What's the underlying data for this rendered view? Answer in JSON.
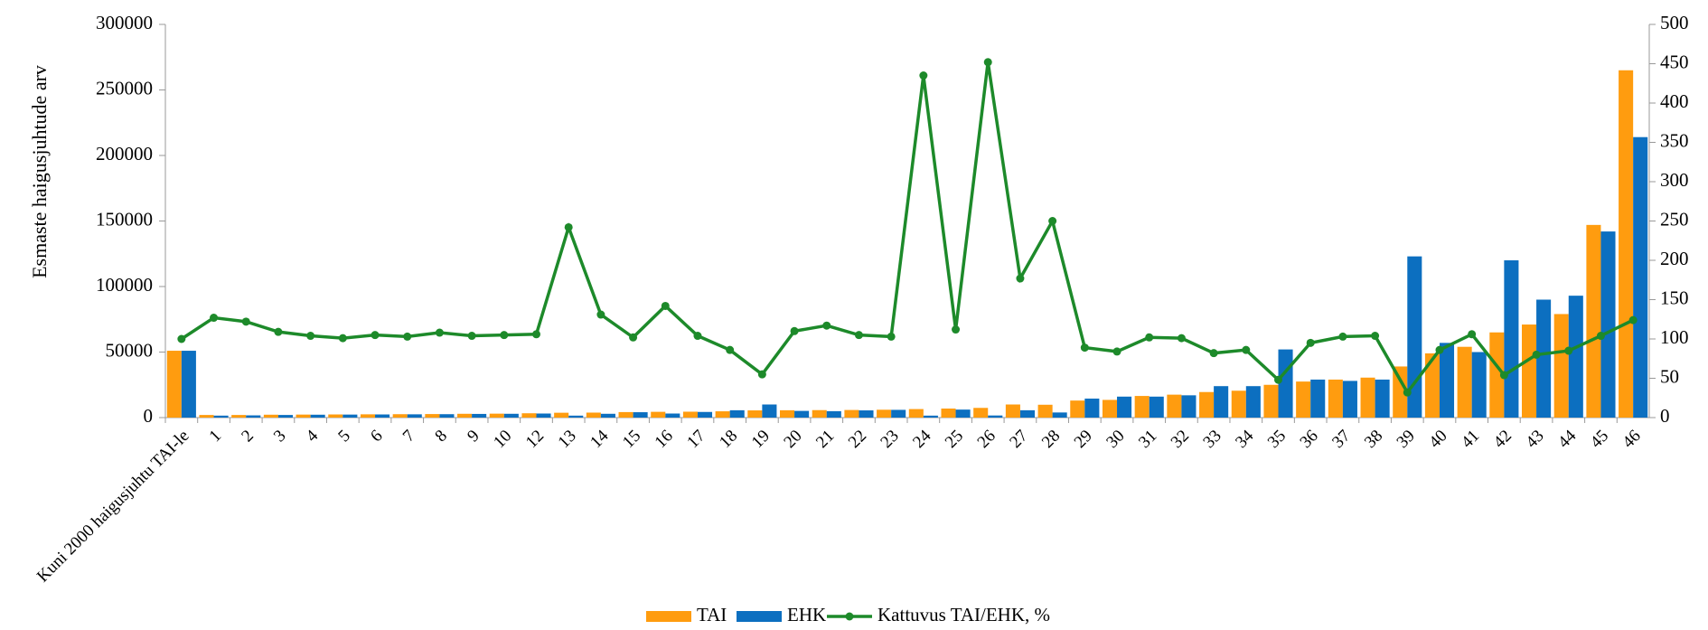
{
  "chart_data": {
    "type": "bar-line",
    "y_label": "Esmaste haigusjuhtude arv",
    "categories": [
      "Kuni 2000 haigusjuhtu TAI-le",
      "1",
      "2",
      "3",
      "4",
      "5",
      "6",
      "7",
      "8",
      "9",
      "10",
      "12",
      "13",
      "14",
      "15",
      "16",
      "17",
      "18",
      "19",
      "20",
      "21",
      "22",
      "23",
      "24",
      "25",
      "26",
      "27",
      "28",
      "29",
      "30",
      "31",
      "32",
      "33",
      "34",
      "35",
      "36",
      "37",
      "38",
      "39",
      "40",
      "41",
      "42",
      "43",
      "44",
      "45",
      "46"
    ],
    "series": [
      {
        "name": "TAI",
        "type": "bar",
        "color": "#ff9c0f",
        "values": [
          51000,
          2000,
          2000,
          2200,
          2300,
          2400,
          2500,
          2600,
          2700,
          2900,
          3000,
          3300,
          3700,
          3800,
          4200,
          4400,
          4500,
          4800,
          5500,
          5600,
          5700,
          5800,
          6000,
          6500,
          6900,
          7400,
          10000,
          9800,
          13000,
          13500,
          16500,
          17500,
          19500,
          20500,
          25000,
          27500,
          29000,
          30500,
          39000,
          49000,
          54000,
          65000,
          71000,
          79000,
          147000,
          265000
        ]
      },
      {
        "name": "EHK",
        "type": "bar",
        "color": "#0c6fc0",
        "values": [
          51000,
          1500,
          1700,
          2000,
          2200,
          2300,
          2400,
          2500,
          2600,
          2800,
          2900,
          3100,
          1500,
          2900,
          4100,
          3100,
          4300,
          5600,
          10000,
          5100,
          4900,
          5500,
          5900,
          1500,
          6100,
          1600,
          5600,
          3900,
          14500,
          16000,
          16000,
          17000,
          24000,
          24000,
          52000,
          29000,
          28000,
          29000,
          123000,
          57000,
          50000,
          120000,
          90000,
          93000,
          142000,
          214000
        ]
      },
      {
        "name": "Kattuvus TAI/EHK, %",
        "type": "line",
        "axis": "y2",
        "color": "#1d8a2a",
        "values": [
          100,
          127,
          122,
          109,
          104,
          101,
          105,
          103,
          108,
          104,
          105,
          106,
          242,
          131,
          102,
          142,
          104,
          86,
          55,
          110,
          117,
          105,
          103,
          435,
          112,
          452,
          177,
          250,
          89,
          84,
          102,
          101,
          82,
          86,
          48,
          95,
          103,
          104,
          32,
          86,
          106,
          54,
          80,
          85,
          104,
          124
        ]
      }
    ],
    "ylim": [
      0,
      300000
    ],
    "yticks": [
      0,
      50000,
      100000,
      150000,
      200000,
      250000,
      300000
    ],
    "y2lim": [
      0,
      500
    ],
    "y2ticks": [
      0,
      50,
      100,
      150,
      200,
      250,
      300,
      350,
      400,
      450,
      500
    ],
    "legend": "bottom"
  }
}
